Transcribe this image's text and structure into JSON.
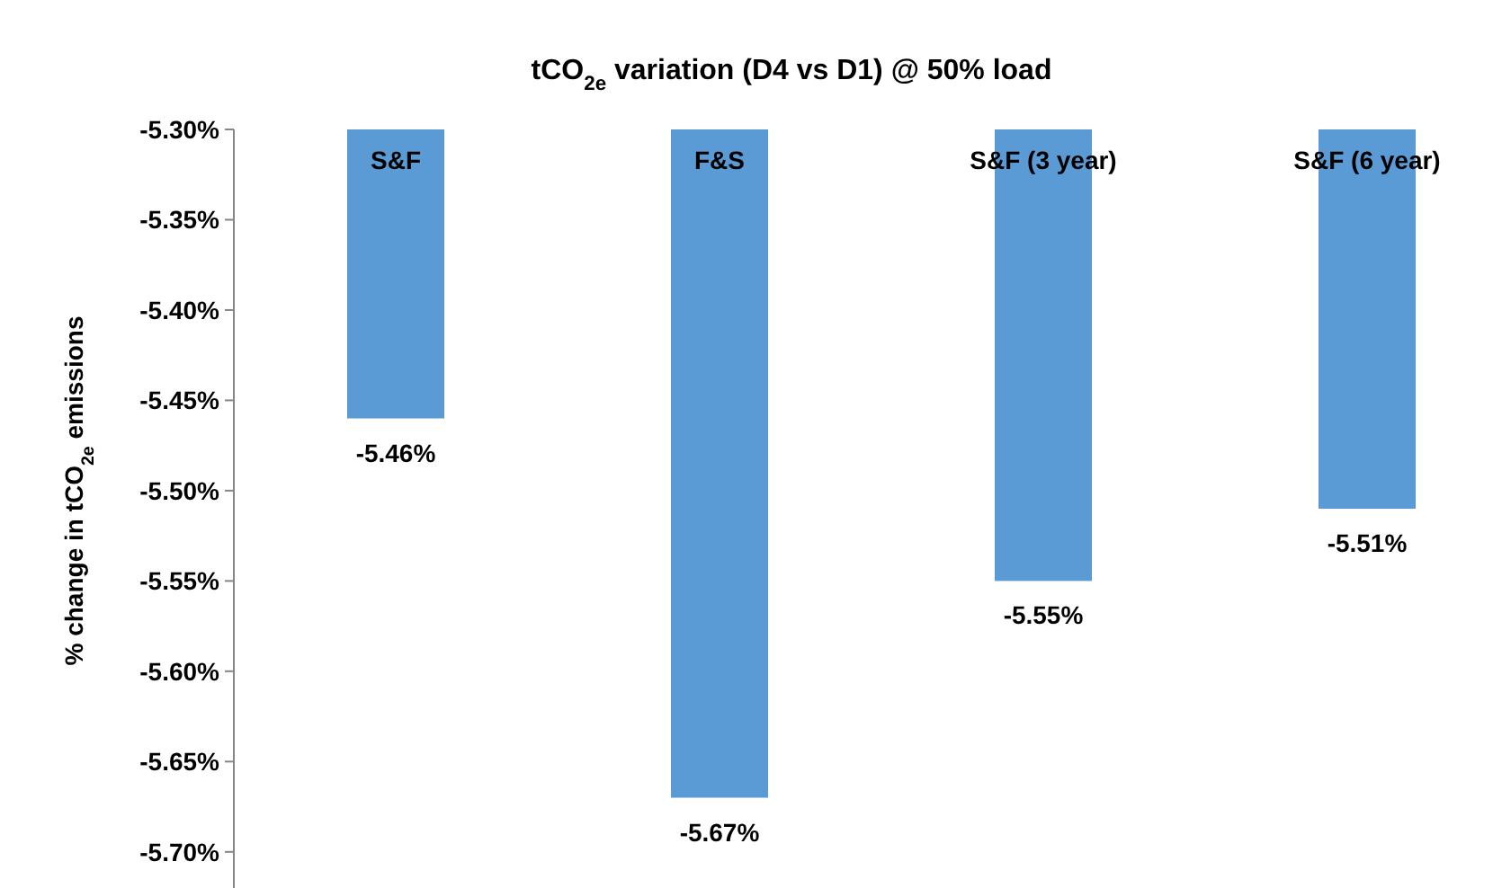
{
  "chart_data": {
    "type": "bar",
    "title": "tCO$_{2e}$ variation (D4 vs D1) @ 50% load",
    "ylabel": "% change in tCO$_{2e}$ emissions",
    "categories": [
      "S&F",
      "F&S",
      "S&F (3 year)",
      "S&F (6 year)"
    ],
    "values": [
      -5.46,
      -5.67,
      -5.55,
      -5.51
    ],
    "value_labels": [
      "-5.46%",
      "-5.67%",
      "-5.55%",
      "-5.51%"
    ],
    "color": "#5b9bd5",
    "ylim": [
      -5.72,
      -5.3
    ],
    "yticks": [
      {
        "value": -5.3,
        "label": "-5.30%"
      },
      {
        "value": -5.35,
        "label": "-5.35%"
      },
      {
        "value": -5.4,
        "label": "-5.40%"
      },
      {
        "value": -5.45,
        "label": "-5.45%"
      },
      {
        "value": -5.5,
        "label": "-5.50%"
      },
      {
        "value": -5.55,
        "label": "-5.55%"
      },
      {
        "value": -5.6,
        "label": "-5.60%"
      },
      {
        "value": -5.65,
        "label": "-5.65%"
      },
      {
        "value": -5.7,
        "label": "-5.70%"
      }
    ],
    "grid": false
  }
}
